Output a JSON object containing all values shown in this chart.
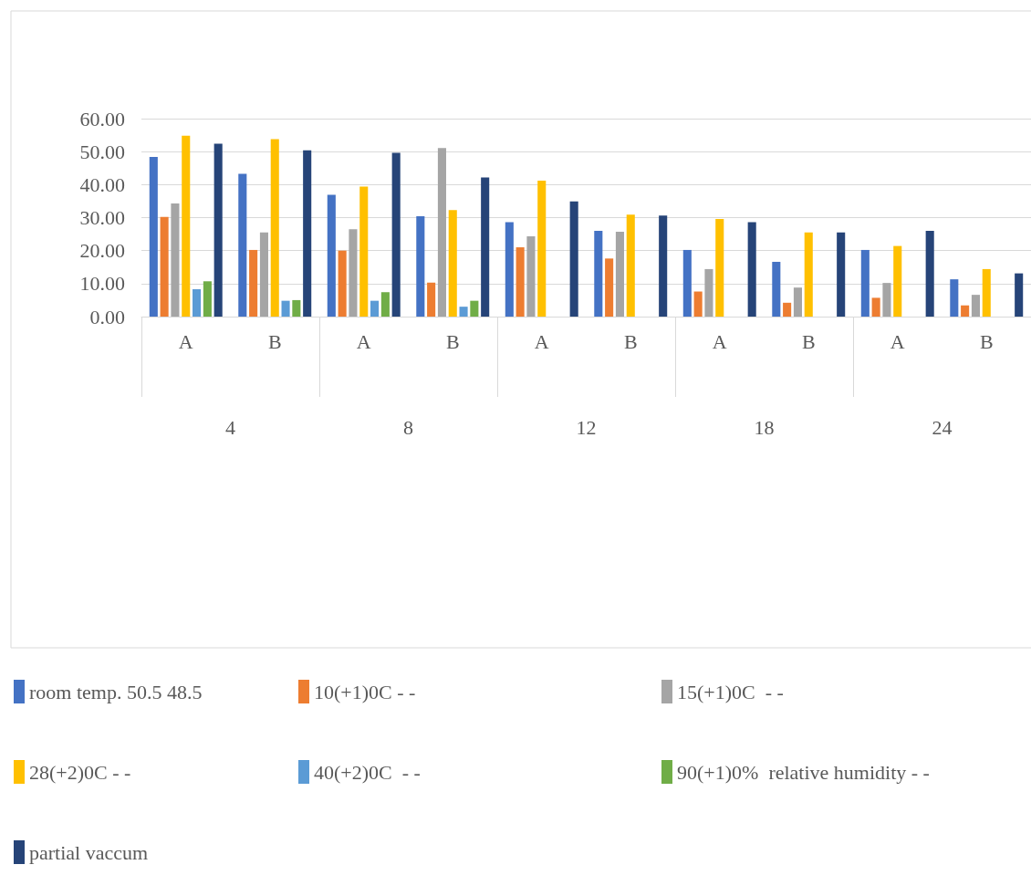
{
  "chart_data": {
    "type": "bar",
    "categories": [
      "A",
      "B",
      "A",
      "B",
      "A",
      "B",
      "A",
      "B",
      "A",
      "B"
    ],
    "annotations": [
      "4",
      "8",
      "12",
      "18",
      "24"
    ],
    "ylim": [
      0,
      60
    ],
    "yticks": [
      {
        "value": 0,
        "label": "0.00"
      },
      {
        "value": 10,
        "label": "10.00"
      },
      {
        "value": 20,
        "label": "20.00"
      },
      {
        "value": 30,
        "label": "30.00"
      },
      {
        "value": 40,
        "label": "40.00"
      },
      {
        "value": 50,
        "label": "50.00"
      },
      {
        "value": 60,
        "label": "60.00"
      }
    ],
    "grid": "y",
    "legend": "bottom",
    "series": [
      {
        "name": "room temp. 50.5 48.5",
        "color": "#4472c4",
        "values": [
          48.4,
          43.3,
          36.9,
          30.4,
          28.6,
          26.0,
          20.2,
          16.6,
          20.2,
          11.3
        ]
      },
      {
        "name": "10(+1)0C - -",
        "color": "#ed7d31",
        "values": [
          30.2,
          20.2,
          20.0,
          10.3,
          21.0,
          17.6,
          7.6,
          4.2,
          5.7,
          3.4
        ]
      },
      {
        "name": "15(+1)0C  - -",
        "color": "#a5a5a5",
        "values": [
          34.3,
          25.5,
          26.5,
          51.1,
          24.3,
          25.7,
          14.4,
          8.8,
          10.2,
          6.6
        ]
      },
      {
        "name": "28(+2)0C - -",
        "color": "#ffc000",
        "values": [
          54.8,
          53.8,
          39.4,
          32.3,
          41.2,
          30.9,
          29.6,
          25.5,
          21.4,
          14.4
        ]
      },
      {
        "name": "40(+2)0C  - -",
        "color": "#5b9bd5",
        "values": [
          8.3,
          4.8,
          4.8,
          3.0,
          null,
          null,
          null,
          null,
          null,
          null
        ]
      },
      {
        "name": "90(+1)0%  relative humidity - -",
        "color": "#70ad47",
        "values": [
          10.7,
          5.0,
          7.4,
          4.8,
          null,
          null,
          null,
          null,
          null,
          null
        ]
      },
      {
        "name": "partial vaccum",
        "color": "#264478",
        "values": [
          52.4,
          50.4,
          49.6,
          42.2,
          34.9,
          30.6,
          28.6,
          25.5,
          26.0,
          13.1
        ]
      }
    ]
  }
}
